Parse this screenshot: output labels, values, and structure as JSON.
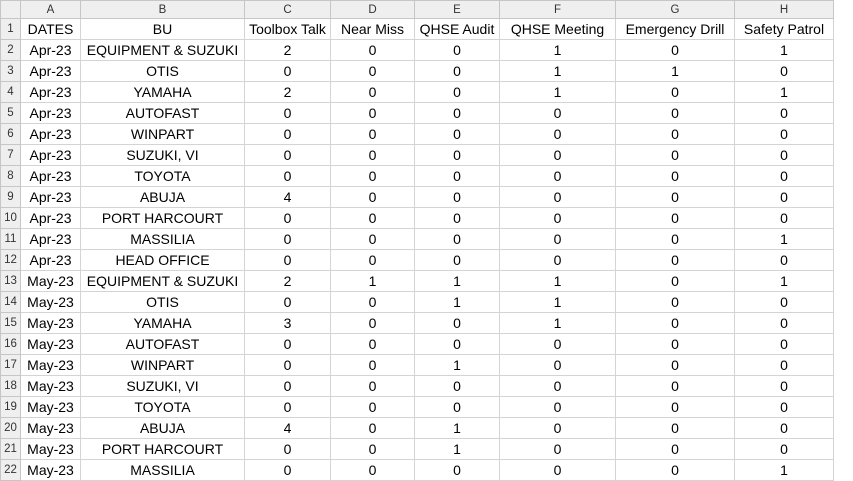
{
  "columns": [
    "A",
    "B",
    "C",
    "D",
    "E",
    "F",
    "G",
    "H"
  ],
  "rows": [
    [
      "DATES",
      "BU",
      "Toolbox Talk",
      "Near Miss",
      "QHSE Audit",
      "QHSE Meeting",
      "Emergency Drill",
      "Safety Patrol"
    ],
    [
      "Apr-23",
      "EQUIPMENT & SUZUKI",
      "2",
      "0",
      "0",
      "1",
      "0",
      "1"
    ],
    [
      "Apr-23",
      "OTIS",
      "0",
      "0",
      "0",
      "1",
      "1",
      "0"
    ],
    [
      "Apr-23",
      "YAMAHA",
      "2",
      "0",
      "0",
      "1",
      "0",
      "1"
    ],
    [
      "Apr-23",
      "AUTOFAST",
      "0",
      "0",
      "0",
      "0",
      "0",
      "0"
    ],
    [
      "Apr-23",
      "WINPART",
      "0",
      "0",
      "0",
      "0",
      "0",
      "0"
    ],
    [
      "Apr-23",
      "SUZUKI, VI",
      "0",
      "0",
      "0",
      "0",
      "0",
      "0"
    ],
    [
      "Apr-23",
      "TOYOTA",
      "0",
      "0",
      "0",
      "0",
      "0",
      "0"
    ],
    [
      "Apr-23",
      "ABUJA",
      "4",
      "0",
      "0",
      "0",
      "0",
      "0"
    ],
    [
      "Apr-23",
      "PORT HARCOURT",
      "0",
      "0",
      "0",
      "0",
      "0",
      "0"
    ],
    [
      "Apr-23",
      "MASSILIA",
      "0",
      "0",
      "0",
      "0",
      "0",
      "1"
    ],
    [
      "Apr-23",
      "HEAD OFFICE",
      "0",
      "0",
      "0",
      "0",
      "0",
      "0"
    ],
    [
      "May-23",
      "EQUIPMENT & SUZUKI",
      "2",
      "1",
      "1",
      "1",
      "0",
      "1"
    ],
    [
      "May-23",
      "OTIS",
      "0",
      "0",
      "1",
      "1",
      "0",
      "0"
    ],
    [
      "May-23",
      "YAMAHA",
      "3",
      "0",
      "0",
      "1",
      "0",
      "0"
    ],
    [
      "May-23",
      "AUTOFAST",
      "0",
      "0",
      "0",
      "0",
      "0",
      "0"
    ],
    [
      "May-23",
      "WINPART",
      "0",
      "0",
      "1",
      "0",
      "0",
      "0"
    ],
    [
      "May-23",
      "SUZUKI, VI",
      "0",
      "0",
      "0",
      "0",
      "0",
      "0"
    ],
    [
      "May-23",
      "TOYOTA",
      "0",
      "0",
      "0",
      "0",
      "0",
      "0"
    ],
    [
      "May-23",
      "ABUJA",
      "4",
      "0",
      "1",
      "0",
      "0",
      "0"
    ],
    [
      "May-23",
      "PORT HARCOURT",
      "0",
      "0",
      "1",
      "0",
      "0",
      "0"
    ],
    [
      "May-23",
      "MASSILIA",
      "0",
      "0",
      "0",
      "0",
      "0",
      "1"
    ]
  ]
}
